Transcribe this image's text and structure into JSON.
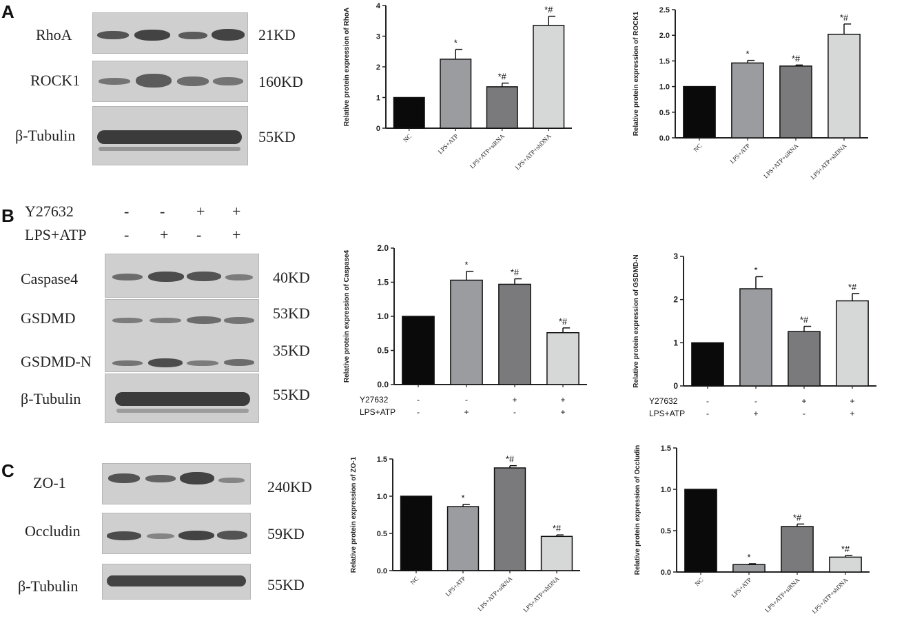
{
  "panels": {
    "A": "A",
    "B": "B",
    "C": "C"
  },
  "blots": {
    "A": {
      "proteins": [
        "RhoA",
        "ROCK1",
        "β-Tubulin"
      ],
      "kd": [
        "21KD",
        "160KD",
        "55KD"
      ]
    },
    "B": {
      "treatments": [
        {
          "name": "Y27632",
          "signs": [
            "-",
            "-",
            "+",
            "+"
          ]
        },
        {
          "name": "LPS+ATP",
          "signs": [
            "-",
            "+",
            "-",
            "+"
          ]
        }
      ],
      "proteins": [
        "Caspase4",
        "GSDMD",
        "GSDMD-N",
        "β-Tubulin"
      ],
      "kd": [
        "40KD",
        "53KD",
        "35KD",
        "55KD"
      ]
    },
    "C": {
      "proteins": [
        "ZO-1",
        "Occludin",
        "β-Tubulin"
      ],
      "kd": [
        "240KD",
        "59KD",
        "55KD"
      ]
    }
  },
  "colors": [
    "#0a0a0a",
    "#9a9ca0",
    "#7a7a7c",
    "#d6d8d8"
  ],
  "chart_data": [
    {
      "id": "rhoa",
      "type": "bar",
      "ylabel": "Relative protein expression of RhoA",
      "categories": [
        "NC",
        "LPS+ATP",
        "LPS+ATP+siRNA",
        "LPS+ATP+shDNA"
      ],
      "values": [
        1.0,
        2.25,
        1.35,
        3.35
      ],
      "errors": [
        0,
        0.32,
        0.12,
        0.3
      ],
      "annotations": [
        "",
        "*",
        "*#",
        "*#"
      ],
      "ylim": [
        0,
        4
      ],
      "yticks": [
        "0",
        "1",
        "2",
        "3",
        "4"
      ]
    },
    {
      "id": "rock1",
      "type": "bar",
      "ylabel": "Relative protein expression of ROCK1",
      "categories": [
        "NC",
        "LPS+ATP",
        "LPS+ATP+siRNA",
        "LPS+ATP+shDNA"
      ],
      "values": [
        1.0,
        1.46,
        1.4,
        2.02
      ],
      "errors": [
        0,
        0.05,
        0.02,
        0.2
      ],
      "annotations": [
        "",
        "*",
        "*#",
        "*#"
      ],
      "ylim": [
        0,
        2.5
      ],
      "yticks": [
        "0.0",
        "0.5",
        "1.0",
        "1.5",
        "2.0",
        "2.5"
      ]
    },
    {
      "id": "caspase4",
      "type": "bar",
      "ylabel": "Relative protein expression of Caspase4",
      "values": [
        1.0,
        1.53,
        1.47,
        0.76
      ],
      "errors": [
        0,
        0.13,
        0.08,
        0.07
      ],
      "annotations": [
        "",
        "*",
        "*#",
        "*#"
      ],
      "ylim": [
        0,
        2.0
      ],
      "yticks": [
        "0.0",
        "0.5",
        "1.0",
        "1.5",
        "2.0"
      ],
      "rows": [
        {
          "name": "Y27632",
          "signs": [
            "-",
            "-",
            "+",
            "+"
          ]
        },
        {
          "name": "LPS+ATP",
          "signs": [
            "-",
            "+",
            "-",
            "+"
          ]
        }
      ]
    },
    {
      "id": "gsdmdn",
      "type": "bar",
      "ylabel": "Relative protein expression of GSDMD-N",
      "values": [
        1.0,
        2.25,
        1.26,
        1.97
      ],
      "errors": [
        0,
        0.28,
        0.12,
        0.17
      ],
      "annotations": [
        "",
        "*",
        "*#",
        "*#"
      ],
      "ylim": [
        0,
        3
      ],
      "yticks": [
        "0",
        "1",
        "2",
        "3"
      ],
      "rows": [
        {
          "name": "Y27632",
          "signs": [
            "-",
            "-",
            "+",
            "+"
          ]
        },
        {
          "name": "LPS+ATP",
          "signs": [
            "-",
            "+",
            "-",
            "+"
          ]
        }
      ]
    },
    {
      "id": "zo1",
      "type": "bar",
      "ylabel": "Relative protein expression of ZO-1",
      "categories": [
        "NC",
        "LPS+ATP",
        "LPS+ATP+siRNA",
        "LPS+ATP+shDNA"
      ],
      "values": [
        1.0,
        0.86,
        1.38,
        0.46
      ],
      "errors": [
        0,
        0.03,
        0.03,
        0.02
      ],
      "annotations": [
        "",
        "*",
        "*#",
        "*#"
      ],
      "ylim": [
        0,
        1.5
      ],
      "yticks": [
        "0.0",
        "0.5",
        "1.0",
        "1.5"
      ]
    },
    {
      "id": "occludin",
      "type": "bar",
      "ylabel": "Relative protein expression of Occludin",
      "categories": [
        "NC",
        "LPS+ATP",
        "LPS+ATP+siRNA",
        "LPS+ATP+shDNA"
      ],
      "values": [
        1.0,
        0.09,
        0.55,
        0.18
      ],
      "errors": [
        0,
        0.01,
        0.03,
        0.02
      ],
      "annotations": [
        "",
        "*",
        "*#",
        "*#"
      ],
      "ylim": [
        0,
        1.5
      ],
      "yticks": [
        "0.0",
        "0.5",
        "1.0",
        "1.5"
      ]
    }
  ]
}
